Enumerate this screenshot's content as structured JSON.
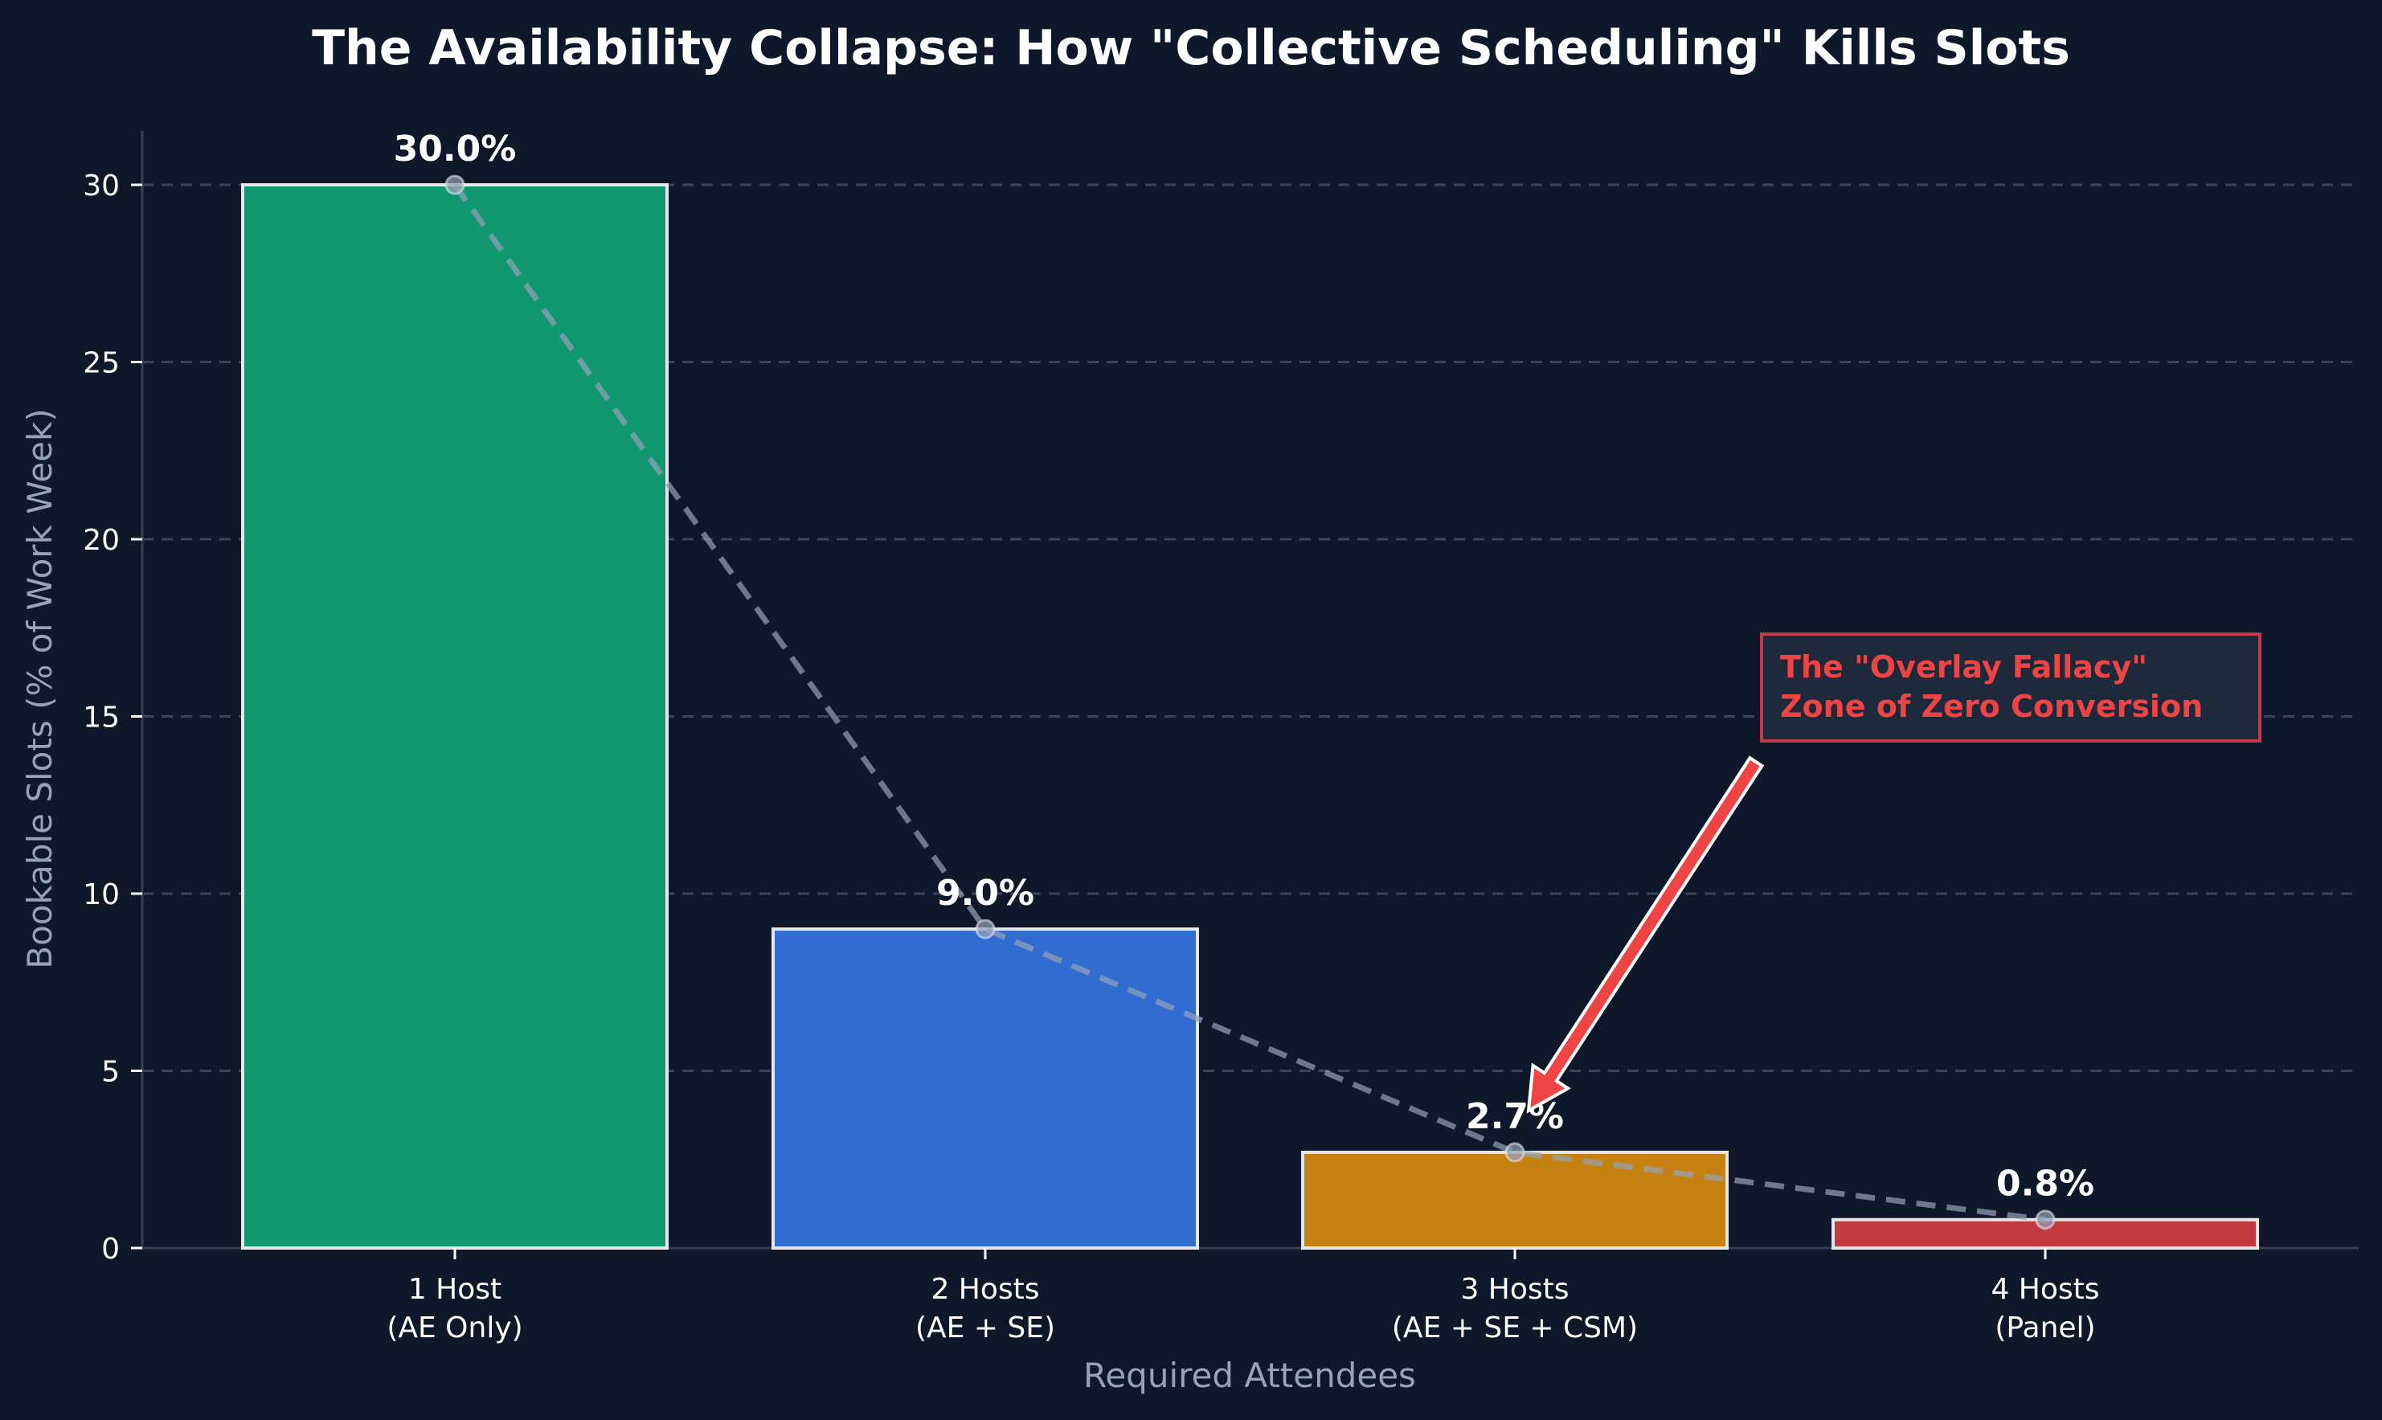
{
  "chart_data": {
    "type": "bar",
    "title": "The Availability Collapse: How \"Collective Scheduling\" Kills Slots",
    "xlabel": "Required Attendees",
    "ylabel": "Bookable Slots (% of Work Week)",
    "categories": [
      "1 Host\n(AE Only)",
      "2 Hosts\n(AE + SE)",
      "3 Hosts\n(AE + SE + CSM)",
      "4 Hosts\n(Panel)"
    ],
    "category_lines": [
      [
        "1 Host",
        "(AE Only)"
      ],
      [
        "2 Hosts",
        "(AE + SE)"
      ],
      [
        "3 Hosts",
        "(AE + SE + CSM)"
      ],
      [
        "4 Hosts",
        "(Panel)"
      ]
    ],
    "values": [
      30.0,
      9.0,
      2.7,
      0.8
    ],
    "value_labels": [
      "30.0%",
      "9.0%",
      "2.7%",
      "0.8%"
    ],
    "bar_colors": [
      "#10976e",
      "#316cd0",
      "#c58213",
      "#c13a40"
    ],
    "overlay_line": {
      "style": "dashed",
      "markers": "circle",
      "values": [
        30.0,
        9.0,
        2.7,
        0.8
      ]
    },
    "yticks": [
      0,
      5,
      10,
      15,
      20,
      25,
      30
    ],
    "ylim": [
      0,
      31.5
    ],
    "grid": {
      "y": true,
      "style": "dashed"
    },
    "legend": null,
    "annotations": [
      {
        "text_lines": [
          "The \"Overlay Fallacy\"",
          "Zone of Zero Conversion"
        ],
        "points_to_category": "3 Hosts\n(AE + SE + CSM)",
        "color": "#ef4444"
      }
    ]
  },
  "colors": {
    "background": "#0f172a",
    "grid": "#475569",
    "axis": "#334155",
    "label": "#94a3b8",
    "text": "#ffffff",
    "annotation": "#ef4444",
    "annotation_box_bg": "#1e293b",
    "annotation_box_border": "#c53b43",
    "bar_edge": "#e5e7eb",
    "trend_line": "#94a3b8"
  }
}
